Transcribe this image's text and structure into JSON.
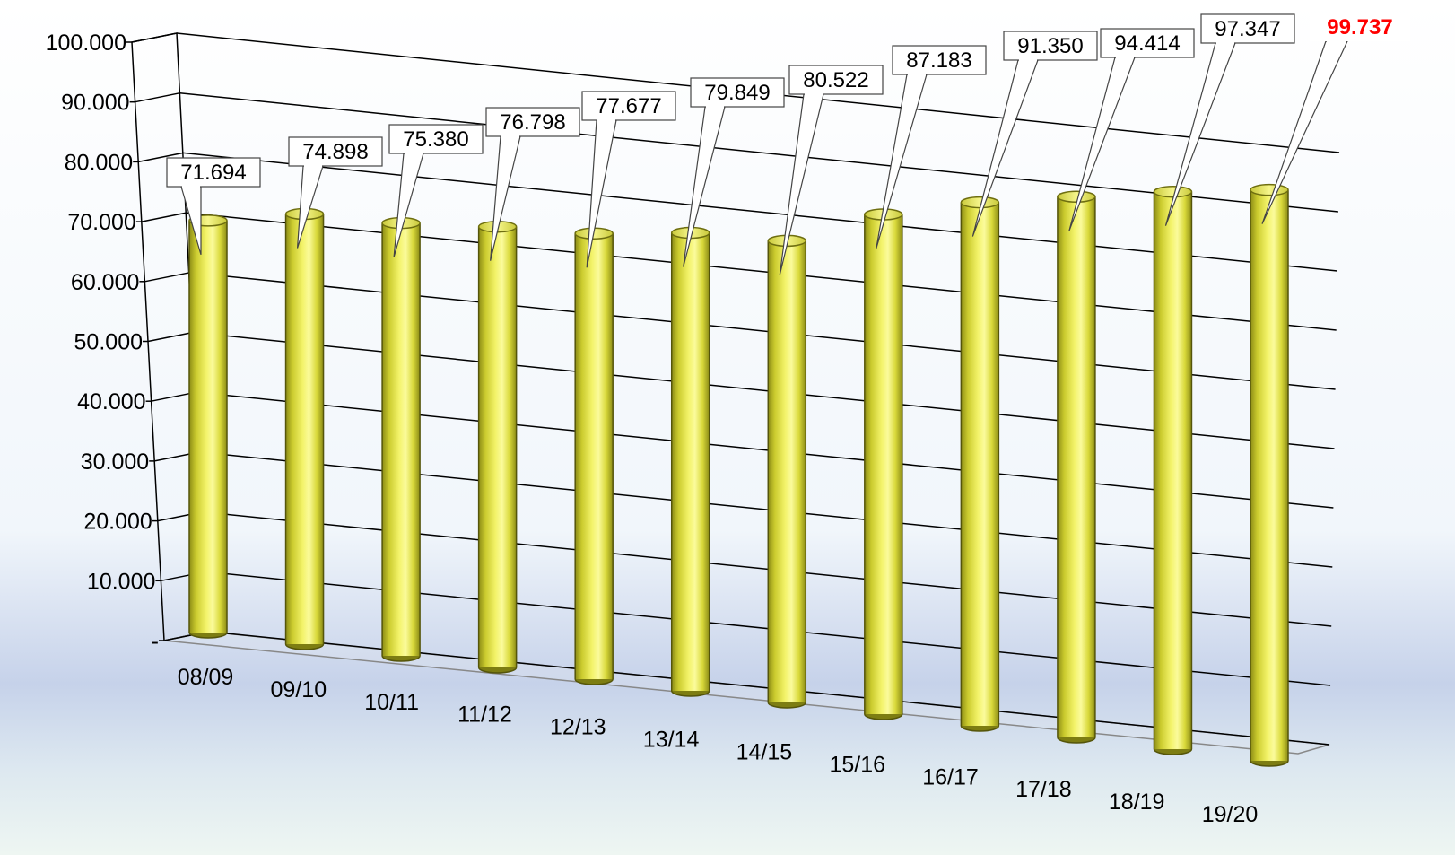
{
  "chart_data": {
    "type": "bar",
    "style": "3d-cylinder",
    "title": "",
    "xlabel": "",
    "ylabel": "",
    "ylim": [
      0,
      100000
    ],
    "y_ticks": [
      0,
      10000,
      20000,
      30000,
      40000,
      50000,
      60000,
      70000,
      80000,
      90000,
      100000
    ],
    "y_tick_labels": [
      "-",
      "10.000",
      "20.000",
      "30.000",
      "40.000",
      "50.000",
      "60.000",
      "70.000",
      "80.000",
      "90.000",
      "100.000"
    ],
    "grid": true,
    "categories": [
      "08/09",
      "09/10",
      "10/11",
      "11/12",
      "12/13",
      "13/14",
      "14/15",
      "15/16",
      "16/17",
      "17/18",
      "18/19",
      "19/20"
    ],
    "values": [
      71694,
      74898,
      75380,
      76798,
      77677,
      79849,
      80522,
      87183,
      91350,
      94414,
      97347,
      99737
    ],
    "data_labels": [
      "71.694",
      "74.898",
      "75.380",
      "76.798",
      "77.677",
      "79.849",
      "80.522",
      "87.183",
      "91.350",
      "94.414",
      "97.347",
      "99.737"
    ],
    "colors": {
      "bar": "#e8e84a",
      "bar_highlight": "#fbfb9a",
      "bar_shadow": "#8f8f18",
      "highlight_label": "#ff0000",
      "background_top": "#ffffff",
      "background_band": "#c3cfe8"
    }
  }
}
